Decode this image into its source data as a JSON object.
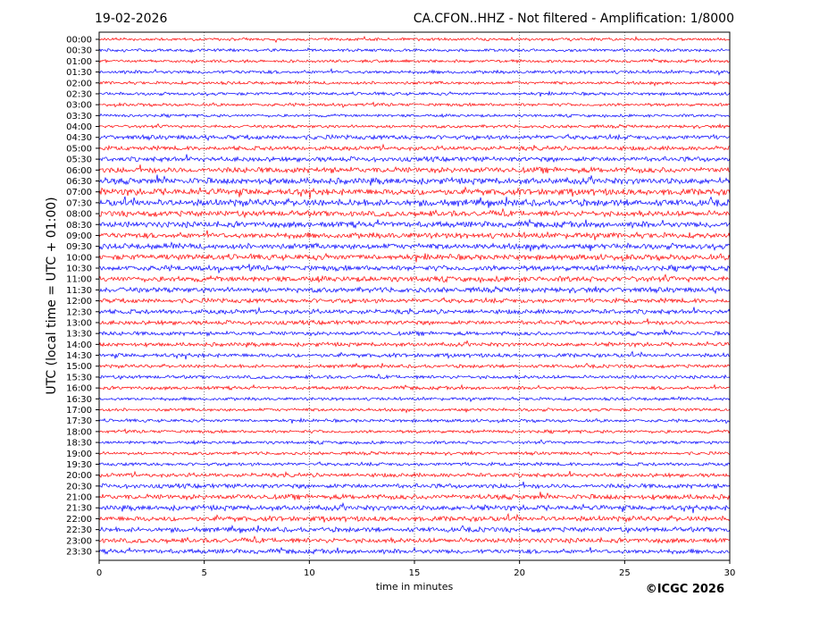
{
  "header": {
    "date": "19-02-2026",
    "station_title": "CA.CFON..HHZ - Not filtered - Amplification: 1/8000"
  },
  "footer": {
    "copyright": "©ICGC 2026"
  },
  "chart_data": {
    "type": "line",
    "subtype": "helicorder",
    "title": "CA.CFON..HHZ - Not filtered - Amplification: 1/8000",
    "xlabel": "time in minutes",
    "ylabel": "UTC (local time = UTC + 01:00)",
    "xlim": [
      0,
      30
    ],
    "x_ticks": [
      "0",
      "5",
      "10",
      "15",
      "20",
      "25",
      "30"
    ],
    "grid": "vertical dotted at each x tick",
    "colors": [
      "#ff0000",
      "#0000ff"
    ],
    "rows": [
      "00:00",
      "00:30",
      "01:00",
      "01:30",
      "02:00",
      "02:30",
      "03:00",
      "03:30",
      "04:00",
      "04:30",
      "05:00",
      "05:30",
      "06:00",
      "06:30",
      "07:00",
      "07:30",
      "08:00",
      "08:30",
      "09:00",
      "09:30",
      "10:00",
      "10:30",
      "11:00",
      "11:30",
      "12:00",
      "12:30",
      "13:00",
      "13:30",
      "14:00",
      "14:30",
      "15:00",
      "15:30",
      "16:00",
      "16:30",
      "17:00",
      "17:30",
      "18:00",
      "18:30",
      "19:00",
      "19:30",
      "20:00",
      "20:30",
      "21:00",
      "21:30",
      "22:00",
      "22:30",
      "23:00",
      "23:30"
    ],
    "relative_noise_level": [
      1.0,
      1.0,
      1.0,
      1.2,
      1.1,
      1.1,
      1.1,
      1.0,
      1.1,
      1.6,
      1.5,
      1.7,
      2.0,
      2.2,
      2.3,
      2.4,
      2.0,
      2.1,
      2.0,
      2.0,
      2.0,
      1.9,
      1.9,
      1.8,
      1.6,
      1.6,
      1.5,
      1.4,
      1.4,
      1.4,
      1.2,
      1.2,
      1.2,
      1.1,
      1.1,
      1.1,
      1.1,
      1.1,
      1.1,
      1.2,
      1.4,
      1.6,
      1.8,
      1.8,
      1.8,
      1.7,
      1.7,
      1.6
    ]
  }
}
